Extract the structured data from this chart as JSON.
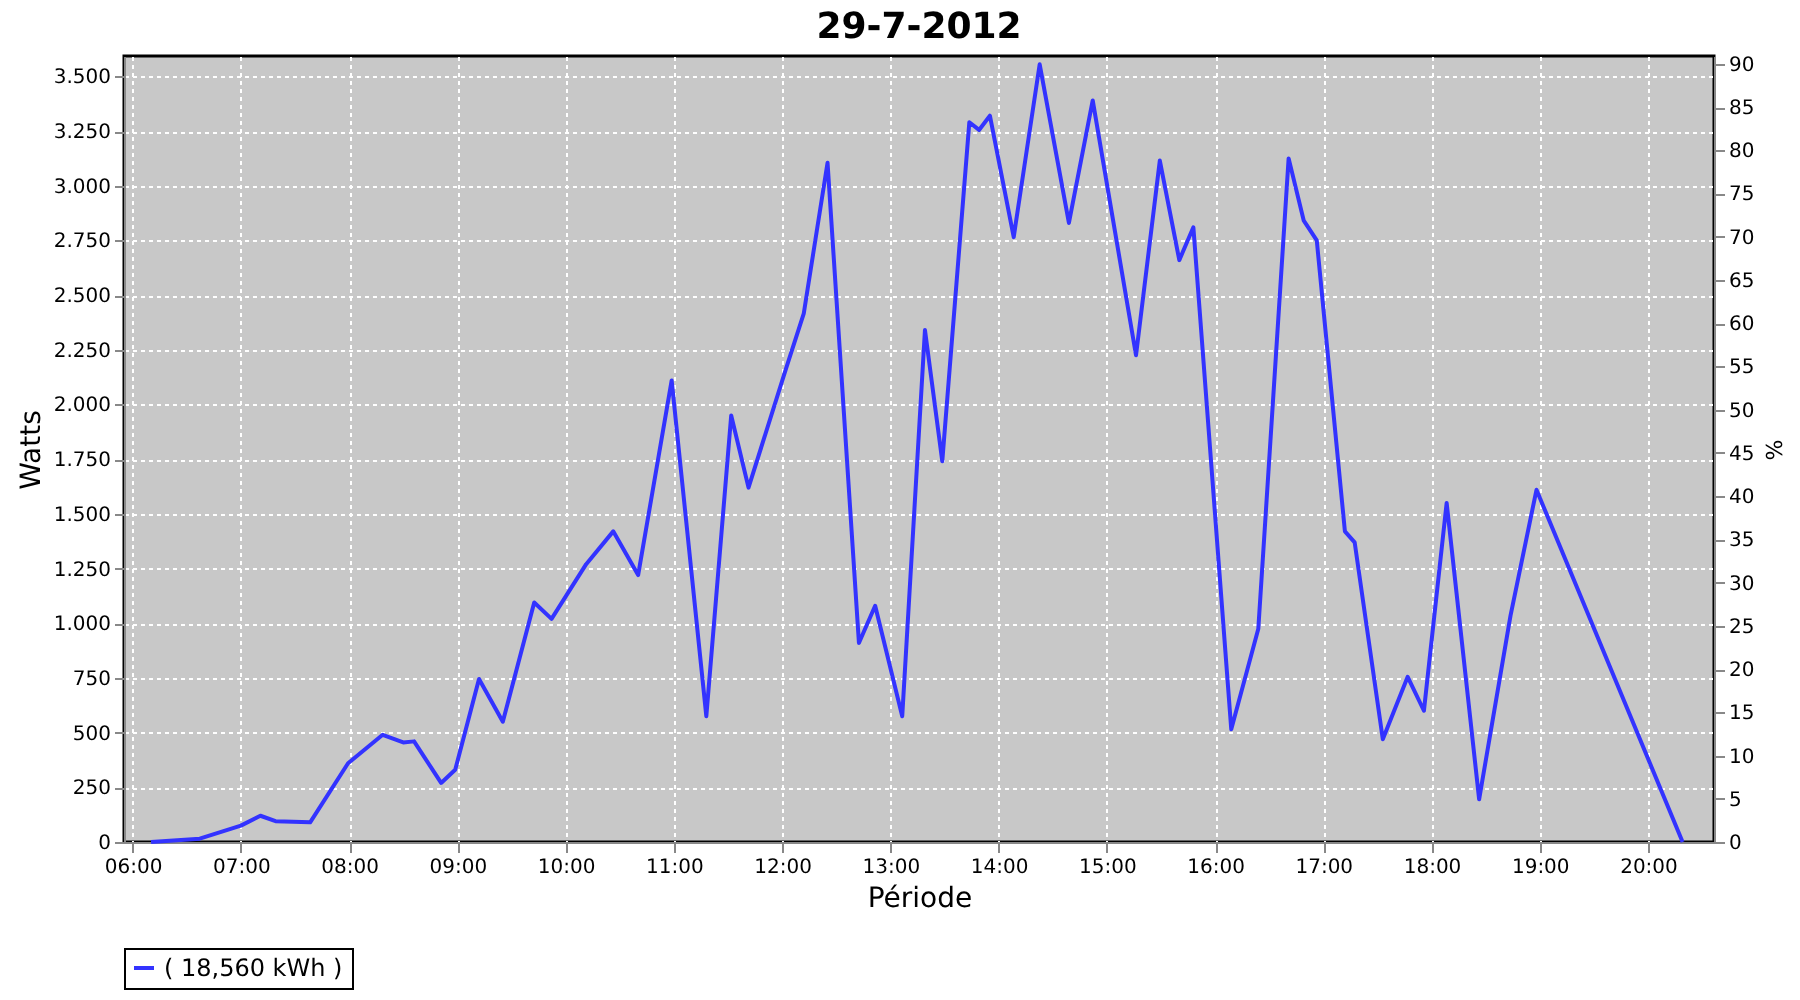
{
  "chart_data": {
    "type": "line",
    "title": "29-7-2012",
    "xlabel": "Période",
    "ylabel": "Watts",
    "y2label": "%",
    "series": [
      {
        "name": "( 18,560 kWh )",
        "color": "#3333ff",
        "x": [
          6.17,
          6.62,
          7.0,
          7.18,
          7.32,
          7.64,
          7.99,
          8.31,
          8.5,
          8.6,
          8.85,
          8.98,
          9.2,
          9.42,
          9.71,
          9.87,
          10.19,
          10.44,
          10.67,
          10.98,
          11.3,
          11.53,
          11.69,
          12.04,
          12.2,
          12.42,
          12.71,
          12.86,
          13.11,
          13.32,
          13.48,
          13.73,
          13.82,
          13.92,
          14.14,
          14.38,
          14.65,
          14.87,
          15.27,
          15.49,
          15.67,
          15.8,
          16.15,
          16.4,
          16.68,
          16.82,
          16.94,
          17.2,
          17.29,
          17.55,
          17.78,
          17.93,
          18.14,
          18.44,
          18.73,
          18.97,
          20.32
        ],
        "values": [
          0,
          15,
          75,
          120,
          95,
          90,
          360,
          490,
          455,
          460,
          270,
          330,
          745,
          550,
          1095,
          1020,
          1270,
          1420,
          1220,
          2110,
          575,
          1950,
          1620,
          2170,
          2415,
          3105,
          910,
          1080,
          575,
          2340,
          1740,
          3290,
          3255,
          3320,
          2765,
          3555,
          2830,
          3390,
          2225,
          3115,
          2660,
          2810,
          515,
          975,
          3125,
          2840,
          2750,
          1420,
          1370,
          470,
          755,
          600,
          1550,
          195,
          1035,
          1610,
          0
        ]
      }
    ],
    "xlim": [
      5.92,
      20.61
    ],
    "xticks": [
      {
        "value": 6,
        "label": "06:00"
      },
      {
        "value": 7,
        "label": "07:00"
      },
      {
        "value": 8,
        "label": "08:00"
      },
      {
        "value": 9,
        "label": "09:00"
      },
      {
        "value": 10,
        "label": "10:00"
      },
      {
        "value": 11,
        "label": "11:00"
      },
      {
        "value": 12,
        "label": "12:00"
      },
      {
        "value": 13,
        "label": "13:00"
      },
      {
        "value": 14,
        "label": "14:00"
      },
      {
        "value": 15,
        "label": "15:00"
      },
      {
        "value": 16,
        "label": "16:00"
      },
      {
        "value": 17,
        "label": "17:00"
      },
      {
        "value": 18,
        "label": "18:00"
      },
      {
        "value": 19,
        "label": "19:00"
      },
      {
        "value": 20,
        "label": "20:00"
      }
    ],
    "ylim": [
      0,
      3593
    ],
    "yticks": [
      0,
      250,
      500,
      750,
      {
        "value": 1000,
        "label": "1.000"
      },
      {
        "value": 1250,
        "label": "1.250"
      },
      {
        "value": 1500,
        "label": "1.500"
      },
      {
        "value": 1750,
        "label": "1.750"
      },
      {
        "value": 2000,
        "label": "2.000"
      },
      {
        "value": 2250,
        "label": "2.250"
      },
      {
        "value": 2500,
        "label": "2.500"
      },
      {
        "value": 2750,
        "label": "2.750"
      },
      {
        "value": 3000,
        "label": "3.000"
      },
      {
        "value": 3250,
        "label": "3.250"
      },
      {
        "value": 3500,
        "label": "3.500"
      }
    ],
    "y2lim": [
      0,
      90.9
    ],
    "y2ticks": [
      0,
      5,
      10,
      15,
      20,
      25,
      30,
      35,
      40,
      45,
      50,
      55,
      60,
      65,
      70,
      75,
      80,
      85,
      90
    ],
    "grid": true,
    "legend": "bottom",
    "marker": "none",
    "line_style": "solid"
  }
}
